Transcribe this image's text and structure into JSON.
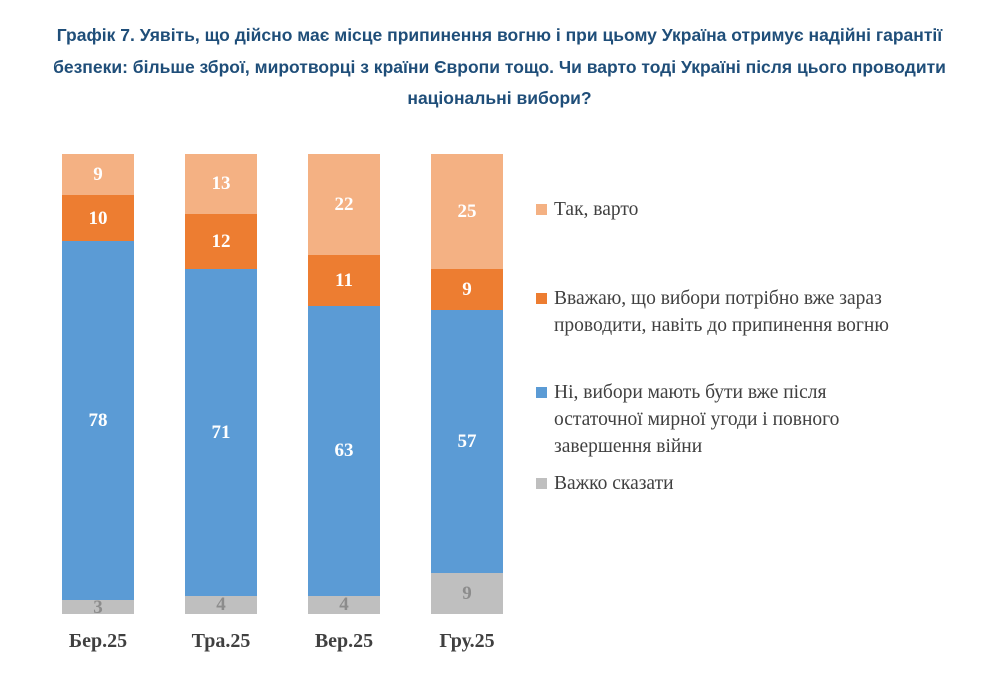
{
  "page": {
    "background": "#ffffff"
  },
  "chart_data": {
    "type": "bar",
    "variant": "stacked-column-100",
    "title": "Графік 7. Уявіть, що дійсно має місце припинення вогню і при цьому Україна отримує надійні гарантії безпеки: більше зброї, миротворці з країни Європи тощо. Чи варто тоді Україні після цього проводити національні вибори?",
    "title_color": "#1F4E79",
    "categories": [
      "Бер.25",
      "Тра.25",
      "Вер.25",
      "Гру.25"
    ],
    "series": [
      {
        "name": "Так, варто",
        "color": "#F4B183",
        "label_color": "#ffffff",
        "values": [
          9,
          13,
          22,
          25
        ]
      },
      {
        "name": "Вважаю, що вибори потрібно вже зараз проводити, навіть до припинення вогню",
        "color": "#ED7D31",
        "label_color": "#ffffff",
        "values": [
          10,
          12,
          11,
          9
        ]
      },
      {
        "name": "Ні, вибори мають бути вже після остаточної мирної угоди і повного завершення війни",
        "color": "#5B9BD5",
        "label_color": "#ffffff",
        "values": [
          78,
          71,
          63,
          57
        ]
      },
      {
        "name": "Важко сказати",
        "color": "#BFBFBF",
        "label_color": "#8C8C8C",
        "values": [
          3,
          4,
          4,
          9
        ]
      }
    ],
    "stack_order_top_to_bottom": [
      "Так, варто",
      "Вважаю, що вибори потрібно вже зараз проводити, навіть до припинення вогню",
      "Ні, вибори мають бути вже після остаточної мирної угоди і повного завершення війни",
      "Важко сказати"
    ],
    "ylim": [
      0,
      100
    ],
    "grid": false,
    "data_labels": true,
    "legend_position": "right",
    "axis_label_color": "#404040",
    "legend_text_color": "#404040"
  }
}
